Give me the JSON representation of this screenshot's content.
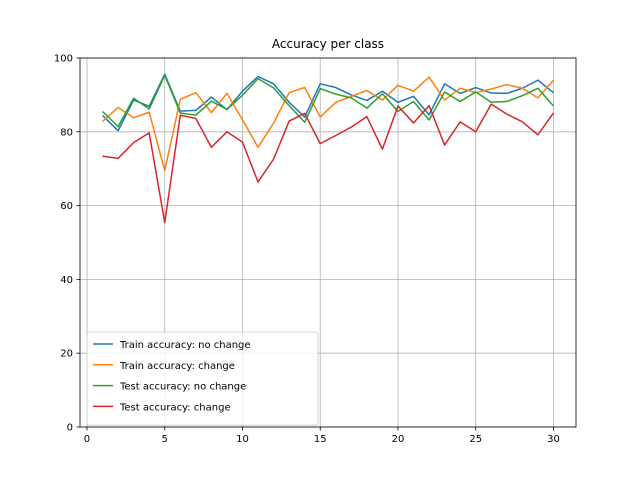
{
  "chart_data": {
    "type": "line",
    "title": "Accuracy per class",
    "xlabel": "",
    "ylabel": "",
    "xlim": [
      -0.45,
      31.45
    ],
    "ylim": [
      0,
      100
    ],
    "xticks": [
      0,
      5,
      10,
      15,
      20,
      25,
      30
    ],
    "yticks": [
      0,
      20,
      40,
      60,
      80,
      100
    ],
    "grid": true,
    "legend_position": "lower-left",
    "x": [
      1,
      2,
      3,
      4,
      5,
      6,
      7,
      8,
      9,
      10,
      11,
      12,
      13,
      14,
      15,
      16,
      17,
      18,
      19,
      20,
      21,
      22,
      23,
      24,
      25,
      26,
      27,
      28,
      29,
      30
    ],
    "series": [
      {
        "name": "Train accuracy: no change",
        "color": "#1f77b4",
        "values": [
          84.4,
          80.3,
          88.6,
          86.9,
          95.6,
          85.6,
          85.8,
          89.4,
          86.0,
          91.0,
          95.0,
          93.0,
          88.0,
          84.0,
          93.0,
          92.0,
          90.0,
          88.5,
          91.0,
          88.0,
          89.6,
          84.6,
          93.0,
          90.4,
          92.0,
          90.5,
          90.4,
          91.8,
          94.0,
          90.6
        ]
      },
      {
        "name": "Train accuracy: change",
        "color": "#ff7f0e",
        "values": [
          82.8,
          86.6,
          83.8,
          85.3,
          69.5,
          88.8,
          90.6,
          85.2,
          90.4,
          83.3,
          75.8,
          82.4,
          90.6,
          92.0,
          84.0,
          88.0,
          89.6,
          91.2,
          88.6,
          92.6,
          91.0,
          94.8,
          88.6,
          91.8,
          90.6,
          91.6,
          92.8,
          91.8,
          89.2,
          94.0
        ]
      },
      {
        "name": "Test accuracy: no change",
        "color": "#2ca02c",
        "values": [
          85.5,
          81.4,
          89.1,
          86.2,
          95.3,
          85.1,
          84.5,
          88.3,
          86.1,
          89.9,
          94.4,
          91.9,
          87.1,
          82.6,
          91.7,
          90.2,
          89.2,
          86.4,
          90.3,
          85.5,
          88.2,
          83.2,
          90.8,
          88.2,
          90.8,
          88.0,
          88.2,
          89.8,
          91.8,
          87.0
        ]
      },
      {
        "name": "Test accuracy: change",
        "color": "#d62728",
        "values": [
          73.4,
          72.8,
          77.1,
          79.7,
          55.4,
          84.5,
          83.6,
          75.8,
          80.0,
          77.2,
          66.4,
          72.6,
          82.9,
          85.0,
          76.8,
          79.0,
          81.3,
          84.1,
          75.3,
          87.0,
          82.4,
          87.1,
          76.4,
          82.7,
          80.0,
          87.5,
          84.8,
          82.7,
          79.2,
          85.1
        ]
      }
    ]
  }
}
